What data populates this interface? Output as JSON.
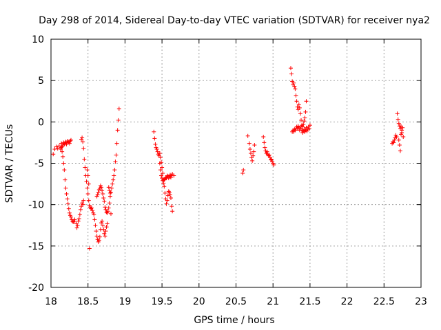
{
  "chart_data": {
    "type": "scatter",
    "title": "Day 298 of 2014, Sidereal Day-to-day VTEC variation (SDTVAR) for receiver nya2",
    "xlabel": "GPS time / hours",
    "ylabel": "SDTVAR / TECUs",
    "xlim": [
      18,
      23
    ],
    "ylim": [
      -20,
      10
    ],
    "xticks": [
      18,
      18.5,
      19,
      19.5,
      20,
      20.5,
      21,
      21.5,
      22,
      22.5,
      23
    ],
    "xtick_labels": [
      "18",
      "18.5",
      "19",
      "19.5",
      "20",
      "20.5",
      "21",
      "21.5",
      "22",
      "22.5",
      "23"
    ],
    "yticks": [
      -20,
      -15,
      -10,
      -5,
      0,
      5,
      10
    ],
    "ytick_labels": [
      "-20",
      "-15",
      "-10",
      "-5",
      "0",
      "5",
      "10"
    ],
    "grid": true,
    "marker": "plus",
    "color": "#ff0000",
    "series": [
      {
        "name": "nya2",
        "points": [
          [
            18.03,
            -3.9
          ],
          [
            18.05,
            -3.3
          ],
          [
            18.07,
            -3.0
          ],
          [
            18.09,
            -3.2
          ],
          [
            18.11,
            -2.9
          ],
          [
            18.13,
            -3.3
          ],
          [
            18.14,
            -2.6
          ],
          [
            18.15,
            -3.0
          ],
          [
            18.16,
            -2.8
          ],
          [
            18.17,
            -2.5
          ],
          [
            18.18,
            -2.7
          ],
          [
            18.19,
            -2.6
          ],
          [
            18.2,
            -2.4
          ],
          [
            18.21,
            -2.7
          ],
          [
            18.22,
            -2.3
          ],
          [
            18.23,
            -2.5
          ],
          [
            18.24,
            -2.4
          ],
          [
            18.25,
            -2.6
          ],
          [
            18.26,
            -2.3
          ],
          [
            18.27,
            -2.2
          ],
          [
            18.14,
            -3.1
          ],
          [
            18.15,
            -3.6
          ],
          [
            18.16,
            -4.2
          ],
          [
            18.17,
            -5.0
          ],
          [
            18.18,
            -5.8
          ],
          [
            18.19,
            -7.0
          ],
          [
            18.2,
            -8.0
          ],
          [
            18.21,
            -8.7
          ],
          [
            18.22,
            -9.3
          ],
          [
            18.23,
            -9.9
          ],
          [
            18.24,
            -10.5
          ],
          [
            18.25,
            -11.0
          ],
          [
            18.26,
            -11.3
          ],
          [
            18.27,
            -11.5
          ],
          [
            18.28,
            -11.8
          ],
          [
            18.29,
            -12.0
          ],
          [
            18.3,
            -12.1
          ],
          [
            18.31,
            -12.0
          ],
          [
            18.32,
            -11.8
          ],
          [
            18.34,
            -12.3
          ],
          [
            18.35,
            -12.8
          ],
          [
            18.36,
            -12.5
          ],
          [
            18.37,
            -12.0
          ],
          [
            18.38,
            -11.7
          ],
          [
            18.39,
            -11.2
          ],
          [
            18.4,
            -10.6
          ],
          [
            18.41,
            -10.2
          ],
          [
            18.42,
            -9.8
          ],
          [
            18.43,
            -10.0
          ],
          [
            18.44,
            -9.5
          ],
          [
            18.41,
            -2.1
          ],
          [
            18.42,
            -1.9
          ],
          [
            18.43,
            -2.4
          ],
          [
            18.44,
            -3.2
          ],
          [
            18.45,
            -4.5
          ],
          [
            18.46,
            -5.5
          ],
          [
            18.47,
            -6.5
          ],
          [
            18.48,
            -7.2
          ],
          [
            18.49,
            -8.0
          ],
          [
            18.5,
            -8.7
          ],
          [
            18.51,
            -9.5
          ],
          [
            18.52,
            -10.1
          ],
          [
            18.53,
            -10.3
          ],
          [
            18.54,
            -10.5
          ],
          [
            18.55,
            -10.4
          ],
          [
            18.56,
            -10.7
          ],
          [
            18.57,
            -11.0
          ],
          [
            18.58,
            -11.2
          ],
          [
            18.59,
            -11.8
          ],
          [
            18.6,
            -12.5
          ],
          [
            18.61,
            -13.2
          ],
          [
            18.62,
            -13.8
          ],
          [
            18.63,
            -14.2
          ],
          [
            18.64,
            -14.5
          ],
          [
            18.65,
            -14.3
          ],
          [
            18.66,
            -13.9
          ],
          [
            18.67,
            -13.0
          ],
          [
            18.68,
            -12.2
          ],
          [
            18.69,
            -12.0
          ],
          [
            18.7,
            -12.5
          ],
          [
            18.71,
            -13.0
          ],
          [
            18.72,
            -13.5
          ],
          [
            18.73,
            -13.8
          ],
          [
            18.74,
            -13.2
          ],
          [
            18.75,
            -12.7
          ],
          [
            18.76,
            -12.3
          ],
          [
            18.49,
            -5.8
          ],
          [
            18.5,
            -6.5
          ],
          [
            18.51,
            -7.5
          ],
          [
            18.52,
            -15.3
          ],
          [
            18.62,
            -9.0
          ],
          [
            18.63,
            -8.8
          ],
          [
            18.64,
            -8.5
          ],
          [
            18.65,
            -8.2
          ],
          [
            18.66,
            -8.0
          ],
          [
            18.67,
            -7.7
          ],
          [
            18.68,
            -7.9
          ],
          [
            18.69,
            -8.3
          ],
          [
            18.7,
            -8.7
          ],
          [
            18.71,
            -9.2
          ],
          [
            18.72,
            -9.6
          ],
          [
            18.73,
            -10.3
          ],
          [
            18.74,
            -10.6
          ],
          [
            18.75,
            -10.9
          ],
          [
            18.76,
            -11.0
          ],
          [
            18.77,
            -10.8
          ],
          [
            18.78,
            -10.4
          ],
          [
            18.79,
            -9.8
          ],
          [
            18.8,
            -9.0
          ],
          [
            18.81,
            -8.5
          ],
          [
            18.82,
            -8.0
          ],
          [
            18.83,
            -7.5
          ],
          [
            18.84,
            -7.0
          ],
          [
            18.85,
            -6.5
          ],
          [
            18.86,
            -5.8
          ],
          [
            18.87,
            -4.8
          ],
          [
            18.88,
            -4.0
          ],
          [
            18.89,
            -2.6
          ],
          [
            18.9,
            -1.0
          ],
          [
            18.91,
            0.2
          ],
          [
            18.92,
            1.6
          ],
          [
            18.78,
            -7.9
          ],
          [
            18.79,
            -8.3
          ],
          [
            18.8,
            -8.6
          ],
          [
            18.81,
            -11.1
          ],
          [
            19.39,
            -1.2
          ],
          [
            19.4,
            -2.0
          ],
          [
            19.41,
            -2.7
          ],
          [
            19.42,
            -3.1
          ],
          [
            19.43,
            -3.3
          ],
          [
            19.44,
            -3.6
          ],
          [
            19.45,
            -3.9
          ],
          [
            19.46,
            -4.1
          ],
          [
            19.47,
            -3.8
          ],
          [
            19.48,
            -4.3
          ],
          [
            19.49,
            -4.9
          ],
          [
            19.5,
            -5.5
          ],
          [
            19.51,
            -6.2
          ],
          [
            19.52,
            -7.0
          ],
          [
            19.53,
            -7.8
          ],
          [
            19.54,
            -8.6
          ],
          [
            19.55,
            -9.3
          ],
          [
            19.56,
            -9.9
          ],
          [
            19.57,
            -9.5
          ],
          [
            19.58,
            -8.9
          ],
          [
            19.59,
            -8.4
          ],
          [
            19.6,
            -8.5
          ],
          [
            19.61,
            -8.8
          ],
          [
            19.62,
            -9.2
          ],
          [
            19.63,
            -10.2
          ],
          [
            19.64,
            -10.8
          ],
          [
            19.47,
            -5.0
          ],
          [
            19.48,
            -5.8
          ],
          [
            19.49,
            -6.5
          ],
          [
            19.5,
            -6.8
          ],
          [
            19.51,
            -7.1
          ],
          [
            19.52,
            -7.4
          ],
          [
            19.53,
            -7.0
          ],
          [
            19.54,
            -6.9
          ],
          [
            19.55,
            -6.7
          ],
          [
            19.56,
            -6.8
          ],
          [
            19.57,
            -6.5
          ],
          [
            19.58,
            -6.6
          ],
          [
            19.59,
            -6.8
          ],
          [
            19.6,
            -6.6
          ],
          [
            19.61,
            -6.4
          ],
          [
            19.62,
            -6.7
          ],
          [
            19.63,
            -6.5
          ],
          [
            19.64,
            -6.3
          ],
          [
            19.66,
            -6.5
          ],
          [
            20.59,
            -6.2
          ],
          [
            20.6,
            -5.8
          ],
          [
            20.66,
            -1.7
          ],
          [
            20.68,
            -2.6
          ],
          [
            20.69,
            -3.3
          ],
          [
            20.7,
            -3.8
          ],
          [
            20.71,
            -4.3
          ],
          [
            20.72,
            -4.7
          ],
          [
            20.73,
            -4.1
          ],
          [
            20.74,
            -3.6
          ],
          [
            20.75,
            -2.8
          ],
          [
            20.87,
            -1.8
          ],
          [
            20.88,
            -2.5
          ],
          [
            20.89,
            -3.1
          ],
          [
            20.9,
            -3.5
          ],
          [
            20.91,
            -3.8
          ],
          [
            20.92,
            -3.6
          ],
          [
            20.93,
            -3.9
          ],
          [
            20.94,
            -4.1
          ],
          [
            20.95,
            -4.0
          ],
          [
            20.96,
            -4.3
          ],
          [
            20.97,
            -4.6
          ],
          [
            20.98,
            -4.5
          ],
          [
            20.99,
            -4.8
          ],
          [
            21.0,
            -5.0
          ],
          [
            21.01,
            -5.2
          ],
          [
            21.24,
            6.5
          ],
          [
            21.25,
            5.8
          ],
          [
            21.26,
            4.9
          ],
          [
            21.27,
            4.5
          ],
          [
            21.28,
            4.7
          ],
          [
            21.29,
            4.3
          ],
          [
            21.3,
            4.0
          ],
          [
            21.31,
            3.2
          ],
          [
            21.32,
            2.5
          ],
          [
            21.33,
            1.8
          ],
          [
            21.34,
            1.5
          ],
          [
            21.35,
            2.1
          ],
          [
            21.36,
            1.7
          ],
          [
            21.37,
            1.0
          ],
          [
            21.38,
            0.2
          ],
          [
            21.39,
            -0.4
          ],
          [
            21.4,
            -0.6
          ],
          [
            21.41,
            -0.3
          ],
          [
            21.42,
            0.1
          ],
          [
            21.43,
            0.5
          ],
          [
            21.44,
            1.2
          ],
          [
            21.45,
            2.5
          ],
          [
            21.26,
            -1.2
          ],
          [
            21.27,
            -1.0
          ],
          [
            21.28,
            -1.2
          ],
          [
            21.29,
            -0.9
          ],
          [
            21.3,
            -1.0
          ],
          [
            21.31,
            -0.8
          ],
          [
            21.32,
            -0.6
          ],
          [
            21.33,
            -0.8
          ],
          [
            21.34,
            -0.5
          ],
          [
            21.35,
            -0.7
          ],
          [
            21.36,
            -1.0
          ],
          [
            21.37,
            -0.8
          ],
          [
            21.38,
            -0.6
          ],
          [
            21.39,
            -1.0
          ],
          [
            21.4,
            -1.3
          ],
          [
            21.41,
            -1.1
          ],
          [
            21.42,
            -0.9
          ],
          [
            21.43,
            -1.2
          ],
          [
            21.44,
            -1.0
          ],
          [
            21.45,
            -0.7
          ],
          [
            21.46,
            -1.1
          ],
          [
            21.47,
            -0.9
          ],
          [
            21.48,
            -0.6
          ],
          [
            21.49,
            -0.8
          ],
          [
            21.5,
            -0.4
          ],
          [
            22.61,
            -2.6
          ],
          [
            22.62,
            -2.4
          ],
          [
            22.63,
            -2.5
          ],
          [
            22.64,
            -2.2
          ],
          [
            22.65,
            -1.9
          ],
          [
            22.66,
            -1.6
          ],
          [
            22.67,
            -1.8
          ],
          [
            22.68,
            1.0
          ],
          [
            22.69,
            0.3
          ],
          [
            22.7,
            -0.2
          ],
          [
            22.71,
            -0.5
          ],
          [
            22.72,
            -0.8
          ],
          [
            22.73,
            -0.5
          ],
          [
            22.74,
            -1.0
          ],
          [
            22.75,
            -0.7
          ],
          [
            22.7,
            -2.2
          ],
          [
            22.71,
            -2.8
          ],
          [
            22.72,
            -3.5
          ],
          [
            22.73,
            -1.5
          ],
          [
            22.74,
            -1.3
          ],
          [
            22.76,
            -1.8
          ]
        ]
      }
    ]
  }
}
